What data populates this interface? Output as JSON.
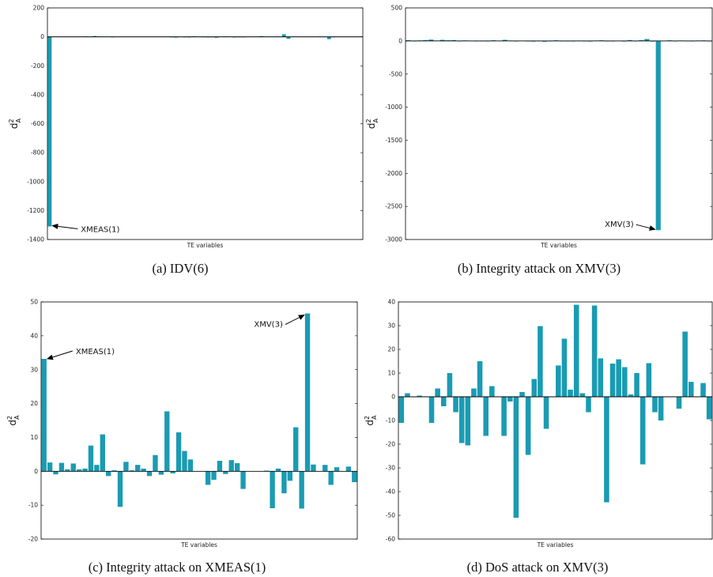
{
  "chart_data": [
    {
      "id": "a",
      "type": "bar",
      "caption": "(a) IDV(6)",
      "xlabel": "TE variables",
      "ylabel": "d",
      "ylabel_sup": "2",
      "ylabel_sub": "A",
      "ylim": [
        -1400,
        200
      ],
      "yticks": [
        200,
        0,
        -200,
        -400,
        -600,
        -800,
        -1000,
        -1200,
        -1400
      ],
      "color": "#1a9bb2",
      "values": [
        -1310,
        0,
        0,
        0,
        0,
        0,
        0,
        0,
        3,
        0,
        6,
        1,
        0,
        0,
        -3,
        0,
        0,
        0,
        0,
        0,
        0,
        0,
        0,
        0,
        0,
        0,
        0,
        -3,
        -5,
        0,
        -3,
        -4,
        4,
        1,
        -3,
        -4,
        -2,
        -6,
        0,
        3,
        0,
        -4,
        -3,
        -3,
        0,
        0,
        0,
        5,
        0,
        0,
        0,
        0,
        18,
        -14,
        1,
        0,
        0,
        0,
        0,
        0,
        2,
        0,
        -16,
        -3,
        0,
        0,
        0,
        0,
        0,
        0
      ],
      "annotations": [
        {
          "label": "XMEAS(1)",
          "bar": 0,
          "side": "right"
        }
      ]
    },
    {
      "id": "b",
      "type": "bar",
      "caption": "(b) Integrity attack on XMV(3)",
      "xlabel": "TE variables",
      "ylabel": "d",
      "ylabel_sup": "2",
      "ylabel_sub": "A",
      "ylim": [
        -3000,
        500
      ],
      "yticks": [
        500,
        0,
        -500,
        -1000,
        -1500,
        -2000,
        -2500,
        -3000
      ],
      "color": "#1a9bb2",
      "values": [
        12,
        -5,
        8,
        14,
        22,
        6,
        18,
        10,
        14,
        -4,
        8,
        3,
        -6,
        2,
        -3,
        10,
        4,
        18,
        6,
        -8,
        4,
        -4,
        -10,
        2,
        -12,
        -6,
        10,
        -5,
        -4,
        -8,
        3,
        -5,
        -9,
        6,
        9,
        -4,
        -7,
        4,
        -9,
        14,
        -6,
        12,
        30,
        -10,
        -2859,
        4,
        9,
        -3,
        6,
        2,
        -4,
        6,
        8,
        -6
      ],
      "annotations": [
        {
          "label": "XMV(3)",
          "bar": 44,
          "side": "left"
        }
      ]
    },
    {
      "id": "c",
      "type": "bar",
      "caption": "(c) Integrity attack on XMEAS(1)",
      "xlabel": "TE variables",
      "ylabel": "d",
      "ylabel_sup": "2",
      "ylabel_sub": "A",
      "ylim": [
        -20,
        50
      ],
      "yticks": [
        50,
        40,
        30,
        20,
        10,
        0,
        -10,
        -20
      ],
      "color": "#1a9bb2",
      "values": [
        33.2,
        2.6,
        -0.9,
        2.5,
        0.6,
        2.3,
        0.6,
        0.8,
        7.6,
        1.9,
        10.9,
        -1.4,
        0.3,
        -10.5,
        2.8,
        0.3,
        1.9,
        0.8,
        -1.4,
        4.8,
        -1.0,
        17.7,
        -0.6,
        11.5,
        6.0,
        3.5,
        0,
        0,
        -4.0,
        -2.5,
        3.1,
        -0.8,
        3.3,
        2.4,
        -5.2,
        0,
        0,
        0,
        0.2,
        -10.9,
        0.8,
        -6.5,
        -2.8,
        13.0,
        -11.0,
        46.6,
        2.0,
        0,
        1.9,
        -4.0,
        1.2,
        0,
        1.4,
        -3.2
      ],
      "annotations": [
        {
          "label": "XMEAS(1)",
          "bar": 0,
          "side": "right"
        },
        {
          "label": "XMV(3)",
          "bar": 45,
          "side": "left"
        }
      ]
    },
    {
      "id": "d",
      "type": "bar",
      "caption": "(d) DoS attack on XMV(3)",
      "xlabel": "TE variables",
      "ylabel": "d",
      "ylabel_sup": "2",
      "ylabel_sub": "A",
      "ylim": [
        -60,
        40
      ],
      "yticks": [
        40,
        30,
        20,
        10,
        0,
        -10,
        -20,
        -30,
        -40,
        -50,
        -60
      ],
      "color": "#1a9bb2",
      "values": [
        -11,
        1.5,
        0,
        0.5,
        0,
        -11,
        3.5,
        -4,
        10,
        -6.5,
        -19.5,
        -20.5,
        3.5,
        15,
        -16.5,
        4.5,
        0,
        -16.5,
        -2,
        -51,
        2,
        -24.5,
        7.5,
        29.8,
        -13.5,
        0,
        13.2,
        24.5,
        3,
        38.8,
        1.5,
        -6.5,
        38.5,
        16.2,
        -44.5,
        14,
        15.8,
        12.5,
        1,
        10,
        -28.5,
        14.2,
        -6.5,
        -10,
        0,
        0,
        -5,
        27.5,
        6.3,
        0,
        5.8,
        -9.5
      ]
    }
  ]
}
